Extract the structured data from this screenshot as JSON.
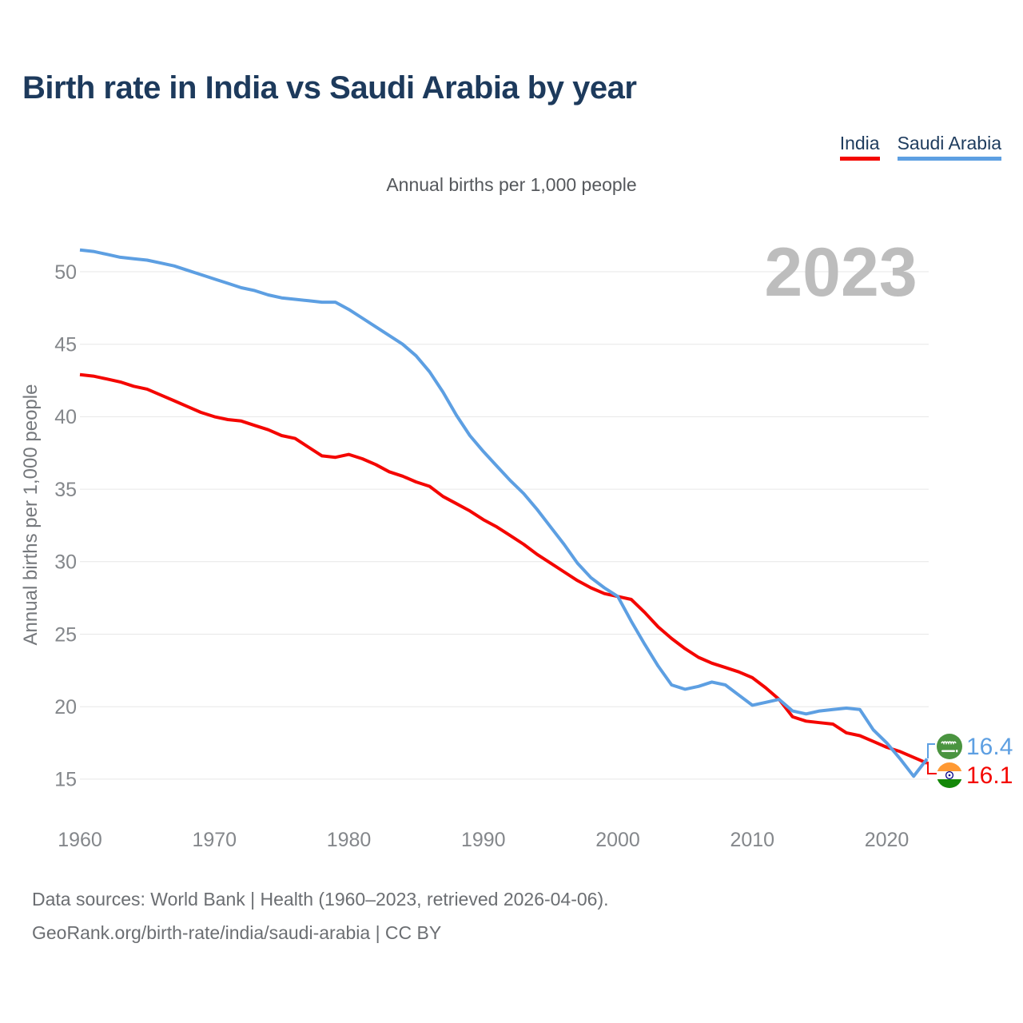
{
  "page": {
    "title": "Birth rate in India vs Saudi Arabia by year",
    "subtitle": "Annual births per 1,000 people",
    "caption_line1": "Data sources: World Bank | Health (1960–2023, retrieved 2026-04-06).",
    "caption_line2": "GeoRank.org/birth-rate/india/saudi-arabia | CC BY"
  },
  "legend": {
    "items": [
      {
        "label": "India",
        "color": "#f40600"
      },
      {
        "label": "Saudi Arabia",
        "color": "#5d9fe2"
      }
    ]
  },
  "end_labels": [
    {
      "series": "Saudi Arabia",
      "value": "16.4",
      "color": "#5d9fe2",
      "flag": "saudi-arabia-flag"
    },
    {
      "series": "India",
      "value": "16.1",
      "color": "#f40600",
      "flag": "india-flag"
    }
  ],
  "chart_data": {
    "type": "line",
    "title": "Birth rate in India vs Saudi Arabia by year",
    "ylabel": "Annual births per 1,000 people",
    "xlabel": "",
    "watermark": "2023",
    "grid": "horizontal",
    "legend_position": "top-right",
    "xlim": [
      1960,
      2023
    ],
    "ylim": [
      13.8,
      52.5
    ],
    "yticks": [
      15,
      20,
      25,
      30,
      35,
      40,
      45,
      50
    ],
    "xticks": [
      1960,
      1970,
      1980,
      1990,
      2000,
      2010,
      2020
    ],
    "years": [
      1960,
      1961,
      1962,
      1963,
      1964,
      1965,
      1966,
      1967,
      1968,
      1969,
      1970,
      1971,
      1972,
      1973,
      1974,
      1975,
      1976,
      1977,
      1978,
      1979,
      1980,
      1981,
      1982,
      1983,
      1984,
      1985,
      1986,
      1987,
      1988,
      1989,
      1990,
      1991,
      1992,
      1993,
      1994,
      1995,
      1996,
      1997,
      1998,
      1999,
      2000,
      2001,
      2002,
      2003,
      2004,
      2005,
      2006,
      2007,
      2008,
      2009,
      2010,
      2011,
      2012,
      2013,
      2014,
      2015,
      2016,
      2017,
      2018,
      2019,
      2020,
      2021,
      2022,
      2023
    ],
    "series": [
      {
        "name": "India",
        "color": "#f40600",
        "end_value": 16.1,
        "values": [
          42.9,
          42.8,
          42.6,
          42.4,
          42.1,
          41.9,
          41.5,
          41.1,
          40.7,
          40.3,
          40.0,
          39.8,
          39.7,
          39.4,
          39.1,
          38.7,
          38.5,
          37.9,
          37.3,
          37.2,
          37.4,
          37.1,
          36.7,
          36.2,
          35.9,
          35.5,
          35.2,
          34.5,
          34.0,
          33.5,
          32.9,
          32.4,
          31.8,
          31.2,
          30.5,
          29.9,
          29.3,
          28.7,
          28.2,
          27.8,
          27.6,
          27.4,
          26.5,
          25.5,
          24.7,
          24.0,
          23.4,
          23.0,
          22.7,
          22.4,
          22.0,
          21.3,
          20.5,
          19.3,
          19.0,
          18.9,
          18.8,
          18.2,
          18.0,
          17.6,
          17.2,
          16.9,
          16.5,
          16.1
        ]
      },
      {
        "name": "Saudi Arabia",
        "color": "#5d9fe2",
        "end_value": 16.4,
        "values": [
          51.5,
          51.4,
          51.2,
          51.0,
          50.9,
          50.8,
          50.6,
          50.4,
          50.1,
          49.8,
          49.5,
          49.2,
          48.9,
          48.7,
          48.4,
          48.2,
          48.1,
          48.0,
          47.9,
          47.9,
          47.4,
          46.8,
          46.2,
          45.6,
          45.0,
          44.2,
          43.1,
          41.7,
          40.1,
          38.7,
          37.6,
          36.6,
          35.6,
          34.7,
          33.6,
          32.4,
          31.2,
          29.9,
          28.9,
          28.2,
          27.6,
          25.9,
          24.3,
          22.8,
          21.5,
          21.2,
          21.4,
          21.7,
          21.5,
          20.8,
          20.1,
          20.3,
          20.5,
          19.7,
          19.5,
          19.7,
          19.8,
          19.9,
          19.8,
          18.4,
          17.5,
          16.4,
          15.2,
          16.4
        ]
      }
    ]
  }
}
